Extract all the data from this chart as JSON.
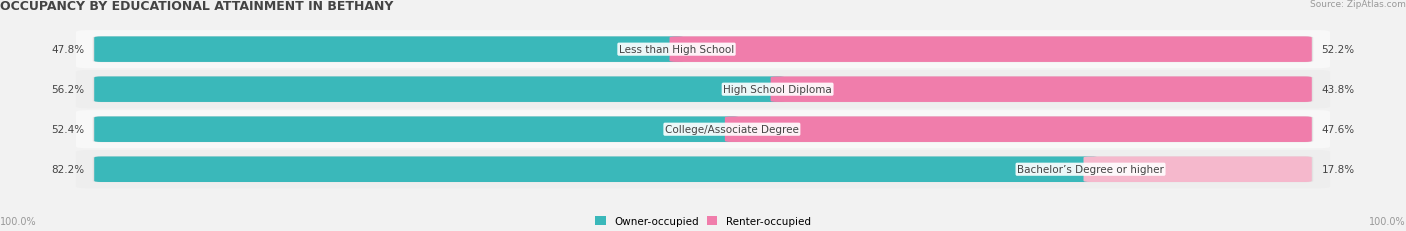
{
  "title": "OCCUPANCY BY EDUCATIONAL ATTAINMENT IN BETHANY",
  "source": "Source: ZipAtlas.com",
  "categories": [
    "Less than High School",
    "High School Diploma",
    "College/Associate Degree",
    "Bachelor’s Degree or higher"
  ],
  "owner_pct": [
    47.8,
    56.2,
    52.4,
    82.2
  ],
  "renter_pct": [
    52.2,
    43.8,
    47.6,
    17.8
  ],
  "owner_color": "#3ab8ba",
  "renter_color": "#f07dab",
  "renter_color_light": "#f5b8cc",
  "bg_color": "#f2f2f2",
  "bar_bg_color": "#e2e2e2",
  "row_bg_even": "#f8f8f8",
  "row_bg_odd": "#eeeeee",
  "text_color": "#444444",
  "title_color": "#444444",
  "source_color": "#999999",
  "axis_label_color": "#999999",
  "figsize": [
    14.06,
    2.32
  ],
  "dpi": 100
}
